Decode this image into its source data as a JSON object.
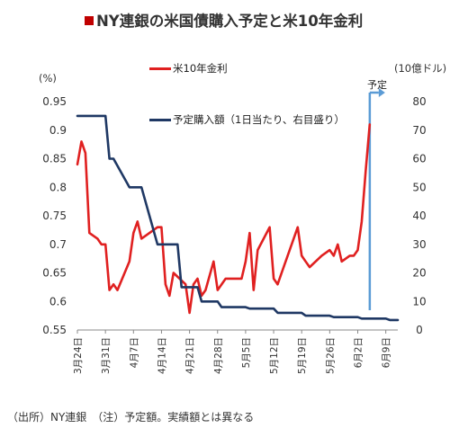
{
  "title": "NY連銀の米国債購入予定と米10年金利",
  "left_unit": "(%)",
  "right_unit": "(10億ドル)",
  "forecast_label": "予定",
  "footer": "（出所）NY連銀　（注）予定額。実績額とは異なる",
  "colors": {
    "rate": "#e02020",
    "purchase": "#1f3864",
    "arrow": "#5b9bd5",
    "title_mark": "#c00000"
  },
  "chart_data": {
    "type": "line",
    "x_ticks": [
      "3月24日",
      "3月31日",
      "4月7日",
      "4月14日",
      "4月21日",
      "4月28日",
      "5月5日",
      "5月12日",
      "5月19日",
      "5月26日",
      "6月2日",
      "6月9日"
    ],
    "x_tick_days": [
      0,
      7,
      14,
      21,
      28,
      35,
      42,
      49,
      56,
      63,
      70,
      77
    ],
    "x_range_days": [
      0,
      80
    ],
    "left_axis": {
      "ticks": [
        "0.95",
        "0.9",
        "0.85",
        "0.8",
        "0.75",
        "0.7",
        "0.65",
        "0.6",
        "0.55"
      ],
      "min": 0.55,
      "max": 0.95
    },
    "right_axis": {
      "ticks": [
        "80",
        "70",
        "60",
        "50",
        "40",
        "30",
        "20",
        "10",
        "0"
      ],
      "min": 0,
      "max": 80
    },
    "forecast_start_day": 73,
    "series": [
      {
        "name": "米10年金利",
        "axis": "left",
        "points": [
          [
            0,
            0.84
          ],
          [
            1,
            0.88
          ],
          [
            2,
            0.86
          ],
          [
            3,
            0.72
          ],
          [
            5,
            0.71
          ],
          [
            6,
            0.7
          ],
          [
            7,
            0.7
          ],
          [
            8,
            0.62
          ],
          [
            9,
            0.63
          ],
          [
            10,
            0.62
          ],
          [
            13,
            0.67
          ],
          [
            14,
            0.72
          ],
          [
            15,
            0.74
          ],
          [
            16,
            0.71
          ],
          [
            18,
            0.72
          ],
          [
            20,
            0.73
          ],
          [
            21,
            0.73
          ],
          [
            22,
            0.63
          ],
          [
            23,
            0.61
          ],
          [
            24,
            0.65
          ],
          [
            27,
            0.63
          ],
          [
            28,
            0.58
          ],
          [
            29,
            0.63
          ],
          [
            30,
            0.64
          ],
          [
            31,
            0.61
          ],
          [
            32,
            0.62
          ],
          [
            34,
            0.67
          ],
          [
            35,
            0.62
          ],
          [
            37,
            0.64
          ],
          [
            41,
            0.64
          ],
          [
            42,
            0.67
          ],
          [
            43,
            0.72
          ],
          [
            44,
            0.62
          ],
          [
            45,
            0.69
          ],
          [
            48,
            0.73
          ],
          [
            49,
            0.64
          ],
          [
            50,
            0.63
          ],
          [
            51,
            0.65
          ],
          [
            55,
            0.73
          ],
          [
            56,
            0.68
          ],
          [
            57,
            0.67
          ],
          [
            58,
            0.66
          ],
          [
            61,
            0.68
          ],
          [
            63,
            0.69
          ],
          [
            64,
            0.68
          ],
          [
            65,
            0.7
          ],
          [
            66,
            0.67
          ],
          [
            68,
            0.68
          ],
          [
            69,
            0.68
          ],
          [
            70,
            0.69
          ],
          [
            71,
            0.74
          ],
          [
            72,
            0.83
          ],
          [
            73,
            0.91
          ]
        ]
      },
      {
        "name": "予定購入額（1日当たり、右目盛り）",
        "axis": "right",
        "points": [
          [
            0,
            75
          ],
          [
            7,
            75
          ],
          [
            8,
            60
          ],
          [
            9,
            60
          ],
          [
            13,
            50
          ],
          [
            16,
            50
          ],
          [
            20,
            30
          ],
          [
            21,
            30
          ],
          [
            25,
            30
          ],
          [
            26,
            15
          ],
          [
            30,
            15
          ],
          [
            31,
            10
          ],
          [
            35,
            10
          ],
          [
            36,
            8
          ],
          [
            42,
            8
          ],
          [
            43,
            7.5
          ],
          [
            49,
            7.5
          ],
          [
            50,
            6
          ],
          [
            56,
            6
          ],
          [
            57,
            5
          ],
          [
            63,
            5
          ],
          [
            64,
            4.5
          ],
          [
            70,
            4.5
          ],
          [
            71,
            4
          ],
          [
            77,
            4
          ],
          [
            78,
            3.5
          ],
          [
            80,
            3.5
          ]
        ]
      }
    ],
    "legend": [
      "米10年金利",
      "予定購入額（1日当たり、右目盛り）"
    ]
  }
}
